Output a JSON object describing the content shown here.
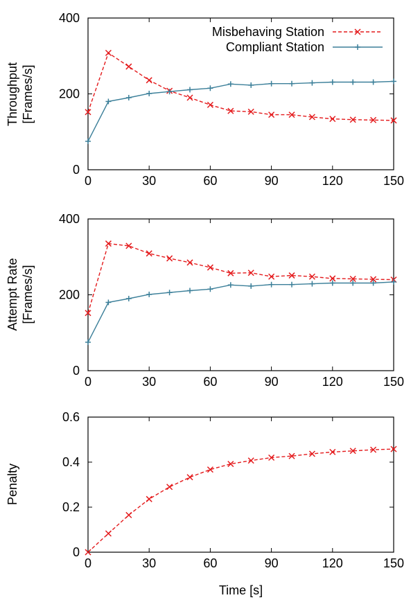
{
  "colors": {
    "misbehaving": "#e41a1c",
    "compliant": "#3b7f99"
  },
  "chart_data": [
    {
      "type": "line",
      "ylabel": [
        "Throughput",
        "[Frames/s]"
      ],
      "xlabel": "",
      "xlim": [
        0,
        150
      ],
      "ylim": [
        0,
        400
      ],
      "xticks": [
        0,
        30,
        60,
        90,
        120,
        150
      ],
      "yticks": [
        0,
        200,
        400
      ],
      "legend": "top-right",
      "x": [
        0,
        10,
        20,
        30,
        40,
        50,
        60,
        70,
        80,
        90,
        100,
        110,
        120,
        130,
        140,
        150
      ],
      "series": [
        {
          "name": "Misbehaving Station",
          "style": "dashed",
          "marker": "x",
          "values": [
            152,
            308,
            272,
            236,
            208,
            190,
            171,
            155,
            153,
            145,
            145,
            139,
            134,
            132,
            131,
            130
          ]
        },
        {
          "name": "Compliant Station",
          "style": "solid",
          "marker": "+",
          "values": [
            75,
            180,
            190,
            201,
            206,
            211,
            215,
            226,
            223,
            227,
            227,
            229,
            231,
            231,
            231,
            233
          ]
        }
      ]
    },
    {
      "type": "line",
      "ylabel": [
        "Attempt Rate",
        "[Frames/s]"
      ],
      "xlabel": "",
      "xlim": [
        0,
        150
      ],
      "ylim": [
        0,
        400
      ],
      "xticks": [
        0,
        30,
        60,
        90,
        120,
        150
      ],
      "yticks": [
        0,
        200,
        400
      ],
      "x": [
        0,
        10,
        20,
        30,
        40,
        50,
        60,
        70,
        80,
        90,
        100,
        110,
        120,
        130,
        140,
        150
      ],
      "series": [
        {
          "name": "",
          "style": "dashed",
          "marker": "x",
          "values": [
            152,
            335,
            329,
            309,
            296,
            285,
            272,
            257,
            258,
            248,
            251,
            248,
            243,
            242,
            241,
            240
          ]
        },
        {
          "name": "",
          "style": "solid",
          "marker": "+",
          "values": [
            75,
            180,
            190,
            201,
            206,
            211,
            215,
            226,
            223,
            227,
            227,
            229,
            231,
            231,
            231,
            234
          ]
        }
      ]
    },
    {
      "type": "line",
      "ylabel": [
        "Penalty"
      ],
      "xlabel": "Time [s]",
      "xlim": [
        0,
        150
      ],
      "ylim": [
        0,
        0.6
      ],
      "xticks": [
        0,
        30,
        60,
        90,
        120,
        150
      ],
      "yticks": [
        0,
        0.2,
        0.4,
        0.6
      ],
      "ytick_labels": [
        "0",
        "0.2",
        "0.4",
        "0.6"
      ],
      "x": [
        0,
        10,
        20,
        30,
        40,
        50,
        60,
        70,
        80,
        90,
        100,
        110,
        120,
        130,
        140,
        150
      ],
      "series": [
        {
          "name": "",
          "style": "dashed",
          "marker": "x",
          "values": [
            0,
            0.083,
            0.165,
            0.236,
            0.29,
            0.333,
            0.367,
            0.392,
            0.407,
            0.42,
            0.427,
            0.437,
            0.445,
            0.45,
            0.455,
            0.458
          ]
        }
      ]
    }
  ]
}
